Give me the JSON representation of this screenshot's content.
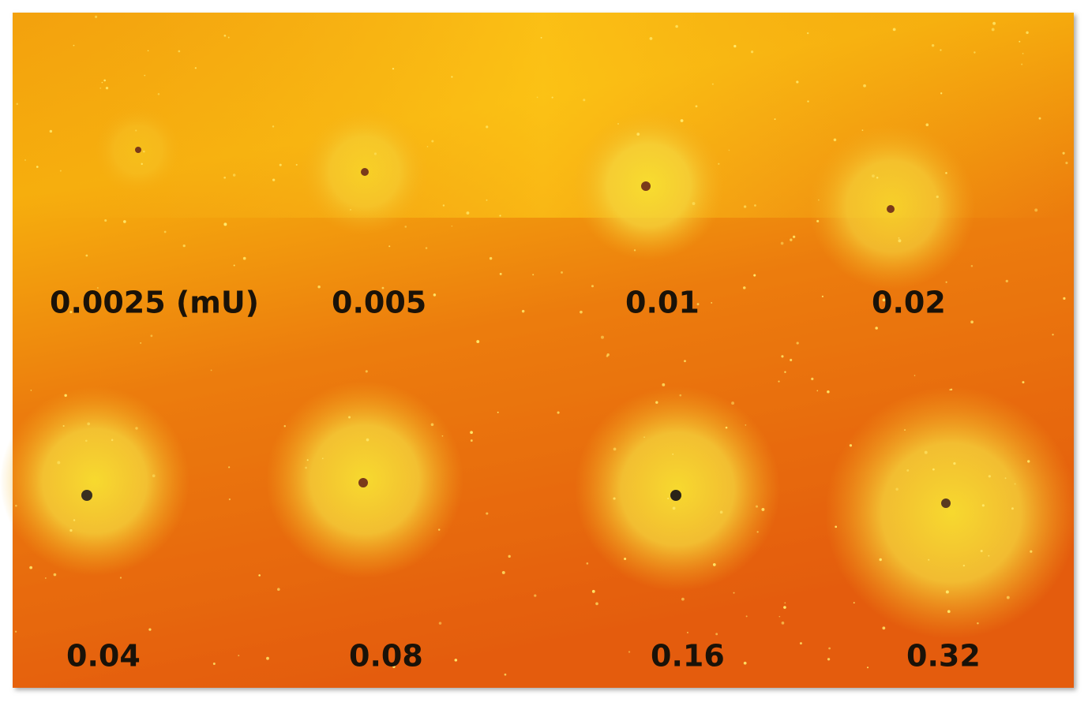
{
  "labels": [
    "0.0025 (mU)",
    "0.005",
    "0.01",
    "0.02",
    "0.04",
    "0.08",
    "0.16",
    "0.32"
  ]
}
